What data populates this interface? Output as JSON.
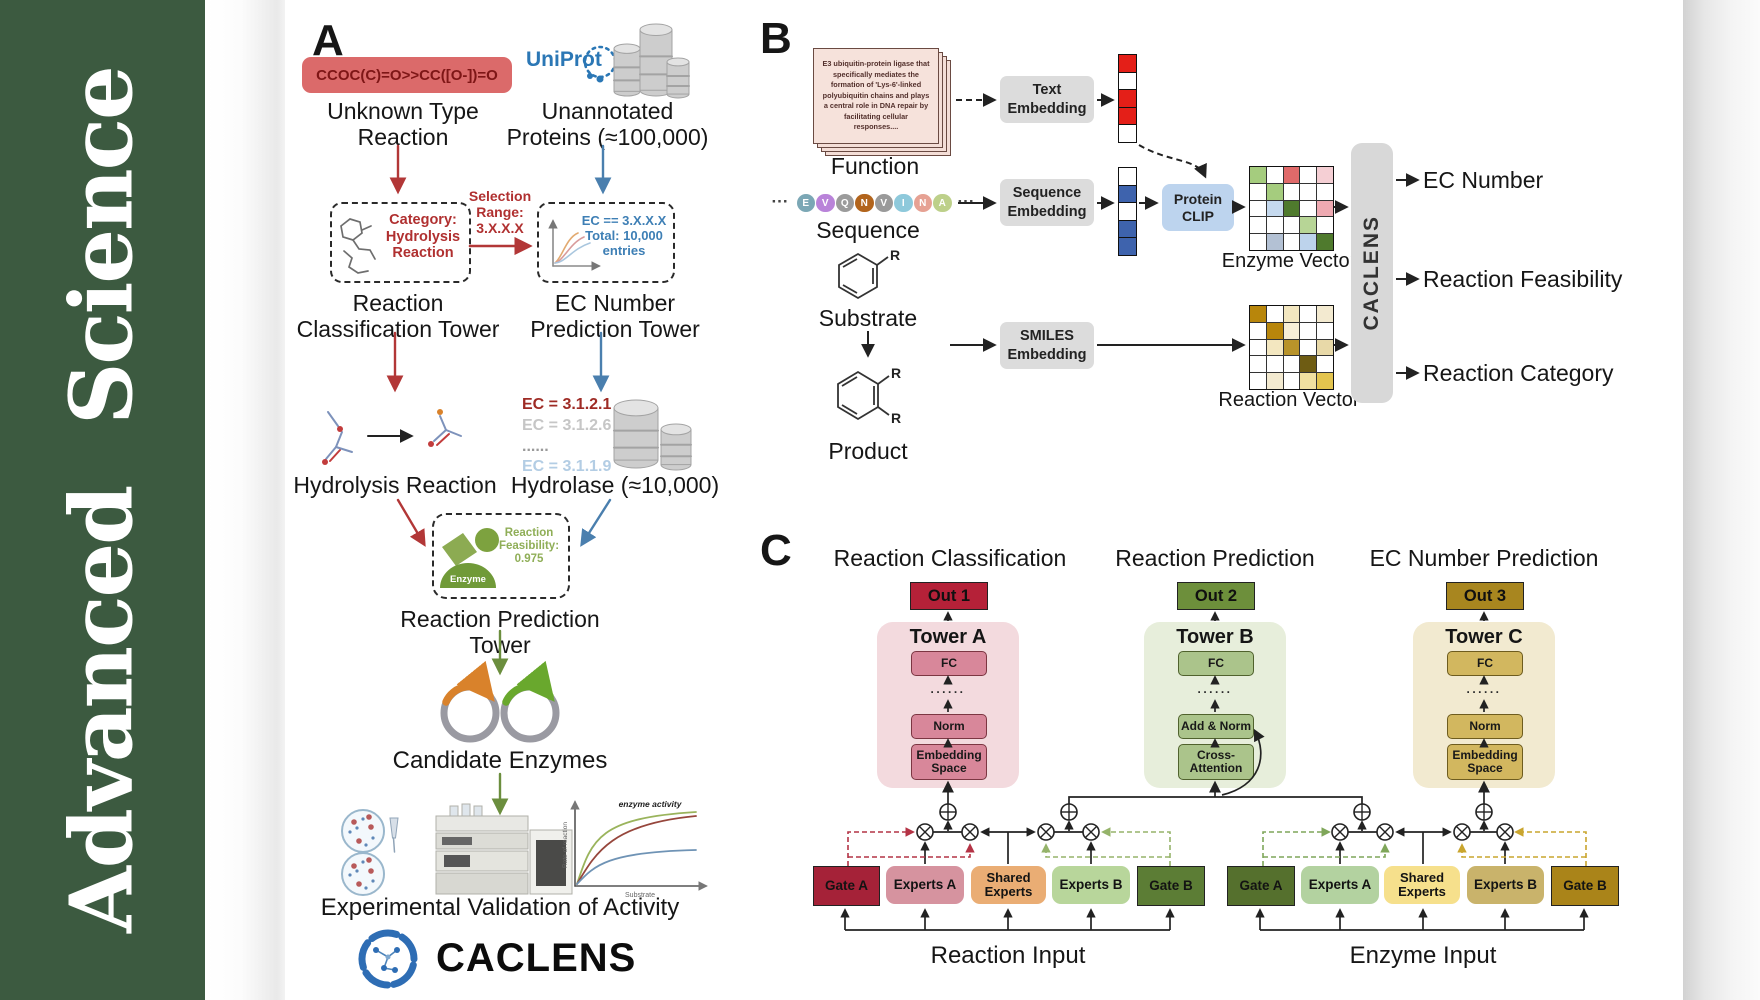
{
  "journal": {
    "name": "Advanced Science"
  },
  "panel_a": {
    "label": "A",
    "smiles": "CCOC(C)=O>>CC([O-])=O",
    "unknown_type": "Unknown Type\nReaction",
    "uniprot": "UniProt",
    "unannotated": "Unannotated\nProteins (≈100,000)",
    "category": "Category:\nHydrolysis\nReaction",
    "selection_range": "Selection\nRange:\n3.X.X.X",
    "ec_filter": "EC == 3.X.X.X\nTotal: 10,000\nentries",
    "tower1": "Reaction\nClassification Tower",
    "tower2": "EC Number\nPrediction Tower",
    "hydrolysis": "Hydrolysis Reaction",
    "ec_list": [
      {
        "text": "EC = 3.1.2.1",
        "color": "#9e2b25"
      },
      {
        "text": "EC = 3.1.2.6",
        "color": "#c6c6c6"
      },
      {
        "text": "......",
        "color": "#9a9a9a"
      },
      {
        "text": "EC = 3.1.1.9",
        "color": "#b3cde4"
      }
    ],
    "hydrolase": "Hydrolase (≈10,000)",
    "enzyme_badge": "Enzyme",
    "feasibility": "Reaction\nFeasibility:\n0.975",
    "tower3": "Reaction Prediction Tower",
    "candidate_enzymes": "Candidate Enzymes",
    "validation": "Experimental Validation of Activity",
    "plot": {
      "annotation": "enzyme activity",
      "ylabel": "Rate of reaction",
      "xlabel": "Substrate"
    },
    "caclens": "CACLENS"
  },
  "panel_b": {
    "label": "B",
    "function_card": "E3 ubiquitin-protein ligase that specifically mediates the formation of 'Lys-6'-linked polyubiquitin chains and plays a central role in DNA repair by facilitating cellular responses....",
    "function": "Function",
    "ellipsis": "···",
    "sequence": "Sequence",
    "residues": [
      {
        "letter": "E",
        "color": "#7ba7b5"
      },
      {
        "letter": "V",
        "color": "#b983d9"
      },
      {
        "letter": "Q",
        "color": "#9b9b9b"
      },
      {
        "letter": "N",
        "color": "#b2641c"
      },
      {
        "letter": "V",
        "color": "#9a9a9a"
      },
      {
        "letter": "I",
        "color": "#8ec9db"
      },
      {
        "letter": "N",
        "color": "#e6a193"
      },
      {
        "letter": "A",
        "color": "#bdd08a"
      }
    ],
    "substrate": "Substrate",
    "product": "Product",
    "r_label": "R",
    "text_embedding": "Text\nEmbedding",
    "sequence_embedding": "Sequence\nEmbedding",
    "smiles_embedding": "SMILES\nEmbedding",
    "protein_clip": "Protein\nCLIP",
    "text_vector": [
      "#e41f18",
      "#ffffff",
      "#e41f18",
      "#e41f18",
      "#ffffff"
    ],
    "sequence_vector": [
      "#ffffff",
      "#3e63ad",
      "#ffffff",
      "#3e63ad",
      "#3e63ad"
    ],
    "enzyme_vector": {
      "label": "Enzyme Vector",
      "cells": [
        [
          "#a5cc7e",
          "#ffffff",
          "#e06a6a",
          "#ffffff",
          "#f5cfd4"
        ],
        [
          "#ffffff",
          "#a5cc7e",
          "#ffffff",
          "#ffffff",
          "#ffffff"
        ],
        [
          "#ffffff",
          "#c5d9ee",
          "#4f7a2d",
          "#ffffff",
          "#efaab2"
        ],
        [
          "#ffffff",
          "#ffffff",
          "#ffffff",
          "#b7d596",
          "#ffffff"
        ],
        [
          "#ffffff",
          "#b3c1d4",
          "#ffffff",
          "#bdd3ec",
          "#4f7a2d"
        ]
      ]
    },
    "reaction_vector": {
      "label": "Reaction Vector",
      "cells": [
        [
          "#b8860b",
          "#ffffff",
          "#f3e7c0",
          "#ffffff",
          "#f3ead0"
        ],
        [
          "#ffffff",
          "#b8860b",
          "#f7efd8",
          "#ffffff",
          "#ffffff"
        ],
        [
          "#ffffff",
          "#f3e7c0",
          "#b8932a",
          "#ffffff",
          "#e8d9a8"
        ],
        [
          "#ffffff",
          "#ffffff",
          "#ffffff",
          "#6e5c13",
          "#ffffff"
        ],
        [
          "#ffffff",
          "#f3ead0",
          "#ffffff",
          "#f0e0a0",
          "#e3c44e"
        ]
      ]
    },
    "caclens_block": "CACLENS",
    "outputs": [
      "EC Number",
      "Reaction Feasibility",
      "Reaction Category"
    ]
  },
  "panel_c": {
    "label": "C",
    "towers": [
      {
        "title": "Reaction Classification",
        "out": "Out 1",
        "name": "Tower A",
        "fc": "FC",
        "dots": "......",
        "mid": "Norm",
        "bottom": "Embedding\nSpace",
        "out_color": "#b52138",
        "bg": "#f3dade",
        "box": "#d8879a"
      },
      {
        "title": "Reaction Prediction",
        "out": "Out 2",
        "name": "Tower B",
        "fc": "FC",
        "dots": "......",
        "mid": "Add & Norm",
        "bottom": "Cross-\nAttention",
        "out_color": "#6d8f3b",
        "bg": "#e7eedb",
        "box": "#abc48b"
      },
      {
        "title": "EC Number Prediction",
        "out": "Out 3",
        "name": "Tower C",
        "fc": "FC",
        "dots": "......",
        "mid": "Norm",
        "bottom": "Embedding\nSpace",
        "out_color": "#a8861f",
        "bg": "#f2ead0",
        "box": "#d2b75f"
      }
    ],
    "groups": [
      {
        "input": "Reaction Input",
        "boxes": [
          {
            "label": "Gate A",
            "color": "#a52238"
          },
          {
            "label": "Experts A",
            "color": "#d6939f"
          },
          {
            "label": "Shared\nExperts",
            "color": "#eaad74"
          },
          {
            "label": "Experts B",
            "color": "#b8d69b"
          },
          {
            "label": "Gate B",
            "color": "#5c7d35"
          }
        ]
      },
      {
        "input": "Enzyme Input",
        "boxes": [
          {
            "label": "Gate A",
            "color": "#55702d"
          },
          {
            "label": "Experts A",
            "color": "#b3d2a0"
          },
          {
            "label": "Shared\nExperts",
            "color": "#f6e08c"
          },
          {
            "label": "Experts B",
            "color": "#c9b36b"
          },
          {
            "label": "Gate B",
            "color": "#aa8419"
          }
        ]
      }
    ]
  }
}
